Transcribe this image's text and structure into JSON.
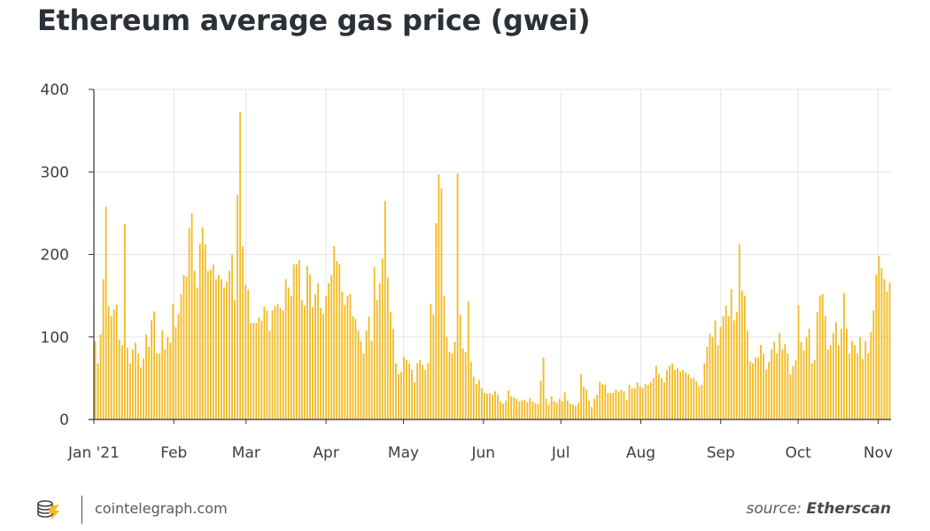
{
  "colors": {
    "bar": "#F2BB22",
    "grid": "#e6e6e6",
    "axis": "#333333",
    "text": "#2b3137"
  },
  "footer": {
    "site": "cointelegraph.com",
    "source_prefix": "source:",
    "source_name": "Etherscan",
    "logo_icon": "cointelegraph-logo-icon"
  },
  "chart_data": {
    "type": "bar",
    "title": "Ethereum average gas price (gwei)",
    "xlabel": "",
    "ylabel": "",
    "ylim": [
      0,
      400
    ],
    "yticks": [
      "0",
      "100",
      "200",
      "300",
      "400"
    ],
    "x_range_days": [
      0,
      309
    ],
    "month_ticks": [
      {
        "label": "Jan '21",
        "day": 0
      },
      {
        "label": "Feb",
        "day": 31
      },
      {
        "label": "Mar",
        "day": 59
      },
      {
        "label": "Apr",
        "day": 90
      },
      {
        "label": "May",
        "day": 120
      },
      {
        "label": "Jun",
        "day": 151
      },
      {
        "label": "Jul",
        "day": 181
      },
      {
        "label": "Aug",
        "day": 212
      },
      {
        "label": "Sep",
        "day": 243
      },
      {
        "label": "Oct",
        "day": 273
      },
      {
        "label": "Nov",
        "day": 304
      }
    ],
    "series": [
      {
        "name": "Average gas price (gwei)",
        "values": [
          95,
          68,
          103,
          170,
          258,
          137,
          125,
          133,
          139,
          97,
          90,
          237,
          87,
          68,
          85,
          93,
          80,
          63,
          74,
          103,
          88,
          120,
          131,
          80,
          80,
          108,
          85,
          100,
          93,
          140,
          112,
          128,
          152,
          175,
          173,
          232,
          250,
          180,
          160,
          213,
          233,
          212,
          180,
          182,
          188,
          170,
          175,
          170,
          160,
          167,
          180,
          200,
          145,
          272,
          372,
          210,
          163,
          157,
          117,
          117,
          117,
          124,
          120,
          137,
          132,
          108,
          132,
          137,
          140,
          135,
          132,
          170,
          160,
          150,
          188,
          188,
          193,
          145,
          138,
          186,
          176,
          136,
          152,
          165,
          135,
          128,
          150,
          165,
          175,
          210,
          192,
          188,
          155,
          138,
          150,
          152,
          125,
          122,
          108,
          95,
          80,
          108,
          125,
          95,
          185,
          145,
          165,
          195,
          265,
          172,
          130,
          110,
          68,
          55,
          58,
          76,
          72,
          68,
          60,
          45,
          68,
          72,
          66,
          60,
          68,
          140,
          127,
          238,
          297,
          280,
          150,
          100,
          82,
          80,
          94,
          298,
          127,
          86,
          82,
          143,
          70,
          52,
          43,
          48,
          38,
          32,
          31,
          32,
          30,
          34,
          30,
          22,
          19,
          23,
          35,
          28,
          27,
          25,
          22,
          23,
          24,
          21,
          26,
          22,
          20,
          19,
          47,
          75,
          25,
          18,
          28,
          22,
          20,
          25,
          22,
          33,
          23,
          19,
          18,
          16,
          20,
          55,
          40,
          36,
          23,
          15,
          25,
          30,
          46,
          43,
          42,
          32,
          32,
          32,
          36,
          34,
          36,
          34,
          24,
          42,
          38,
          38,
          45,
          40,
          38,
          43,
          42,
          45,
          50,
          65,
          55,
          50,
          45,
          60,
          65,
          68,
          60,
          62,
          58,
          60,
          57,
          55,
          50,
          50,
          46,
          40,
          42,
          68,
          88,
          104,
          100,
          120,
          90,
          112,
          125,
          138,
          125,
          158,
          120,
          130,
          212,
          156,
          150,
          108,
          70,
          68,
          75,
          75,
          90,
          80,
          60,
          70,
          85,
          94,
          80,
          105,
          85,
          91,
          80,
          55,
          65,
          72,
          138,
          94,
          84,
          100,
          110,
          68,
          72,
          130,
          150,
          152,
          125,
          85,
          90,
          105,
          118,
          90,
          110,
          153,
          110,
          80,
          95,
          90,
          80,
          100,
          73,
          95,
          80,
          106,
          132,
          176,
          198,
          183,
          170,
          155,
          166
        ]
      }
    ]
  }
}
